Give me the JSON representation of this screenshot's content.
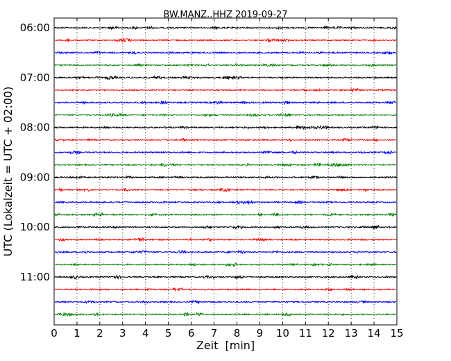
{
  "chart_data": {
    "type": "line",
    "title": "BW.MANZ..HHZ 2019-09-27",
    "xlabel": "Zeit  [min]",
    "ylabel": "UTC (Lokalzeit = UTC + 02:00)",
    "xlim": [
      0,
      15
    ],
    "x_ticks": [
      "0",
      "1",
      "2",
      "3",
      "4",
      "5",
      "6",
      "7",
      "8",
      "9",
      "10",
      "11",
      "12",
      "13",
      "14",
      "15"
    ],
    "y_ticks": [
      {
        "label": "06:00",
        "row": 0
      },
      {
        "label": "07:00",
        "row": 4
      },
      {
        "label": "08:00",
        "row": 8
      },
      {
        "label": "09:00",
        "row": 12
      },
      {
        "label": "10:00",
        "row": 16
      },
      {
        "label": "11:00",
        "row": 20
      }
    ],
    "grid": "vertical dotted",
    "trace_rows": [
      {
        "start": "06:00",
        "color": "#000000"
      },
      {
        "start": "06:15",
        "color": "#ff0000"
      },
      {
        "start": "06:30",
        "color": "#0000ff"
      },
      {
        "start": "06:45",
        "color": "#008000"
      },
      {
        "start": "07:00",
        "color": "#000000"
      },
      {
        "start": "07:15",
        "color": "#ff0000"
      },
      {
        "start": "07:30",
        "color": "#0000ff"
      },
      {
        "start": "07:45",
        "color": "#008000"
      },
      {
        "start": "08:00",
        "color": "#000000"
      },
      {
        "start": "08:15",
        "color": "#ff0000"
      },
      {
        "start": "08:30",
        "color": "#0000ff"
      },
      {
        "start": "08:45",
        "color": "#008000"
      },
      {
        "start": "09:00",
        "color": "#000000"
      },
      {
        "start": "09:15",
        "color": "#ff0000"
      },
      {
        "start": "09:30",
        "color": "#0000ff"
      },
      {
        "start": "09:45",
        "color": "#008000"
      },
      {
        "start": "10:00",
        "color": "#000000"
      },
      {
        "start": "10:15",
        "color": "#ff0000"
      },
      {
        "start": "10:30",
        "color": "#0000ff"
      },
      {
        "start": "10:45",
        "color": "#008000"
      },
      {
        "start": "11:00",
        "color": "#000000"
      },
      {
        "start": "11:15",
        "color": "#ff0000"
      },
      {
        "start": "11:30",
        "color": "#0000ff"
      },
      {
        "start": "11:45",
        "color": "#008000"
      }
    ]
  }
}
